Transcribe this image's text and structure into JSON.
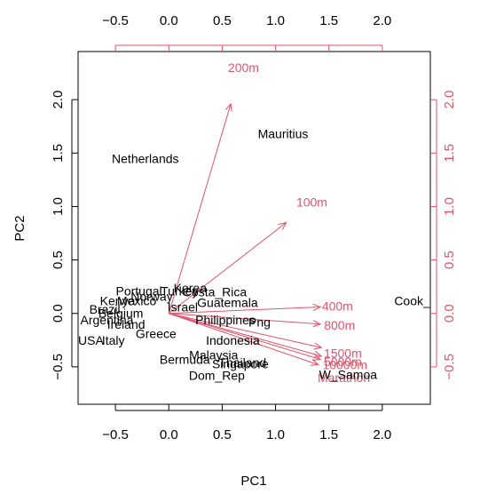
{
  "chart_data": {
    "type": "scatter",
    "subtype": "biplot",
    "title": "",
    "xlabel": "PC1",
    "ylabel": "PC2",
    "xlim": [
      -0.85,
      2.45
    ],
    "ylim": [
      -0.85,
      2.45
    ],
    "ticks": [
      -0.5,
      0.0,
      0.5,
      1.0,
      1.5,
      2.0
    ],
    "tick_labels": [
      "−0.5",
      "0.0",
      "0.5",
      "1.0",
      "1.5",
      "2.0"
    ],
    "vector_color": "#df536b",
    "axis_color": "#000000",
    "observations": [
      {
        "label": "Netherlands",
        "x": -0.22,
        "y": 1.45
      },
      {
        "label": "Mauritius",
        "x": 1.07,
        "y": 1.68
      },
      {
        "label": "Cook_",
        "x": 2.28,
        "y": 0.12
      },
      {
        "label": "Korea",
        "x": 0.2,
        "y": 0.24
      },
      {
        "label": "Costa_Rica",
        "x": 0.43,
        "y": 0.2
      },
      {
        "label": "Guatemala",
        "x": 0.55,
        "y": 0.1
      },
      {
        "label": "Portugal",
        "x": -0.28,
        "y": 0.21
      },
      {
        "label": "Turkey",
        "x": 0.1,
        "y": 0.21
      },
      {
        "label": "Israel",
        "x": 0.13,
        "y": 0.06
      },
      {
        "label": "Norway",
        "x": -0.16,
        "y": 0.16
      },
      {
        "label": "Kenya",
        "x": -0.48,
        "y": 0.12
      },
      {
        "label": "Mexico",
        "x": -0.3,
        "y": 0.12
      },
      {
        "label": "Brazil",
        "x": -0.6,
        "y": 0.04
      },
      {
        "label": "Belgium",
        "x": -0.45,
        "y": 0.0
      },
      {
        "label": "Philippines",
        "x": 0.53,
        "y": -0.06
      },
      {
        "label": "Png",
        "x": 0.85,
        "y": -0.08
      },
      {
        "label": "Argentina",
        "x": -0.58,
        "y": -0.06
      },
      {
        "label": "Ireland",
        "x": -0.4,
        "y": -0.1
      },
      {
        "label": "Greece",
        "x": -0.12,
        "y": -0.19
      },
      {
        "label": "Indonesia",
        "x": 0.6,
        "y": -0.25
      },
      {
        "label": "USA",
        "x": -0.73,
        "y": -0.25
      },
      {
        "label": "Italy",
        "x": -0.52,
        "y": -0.25
      },
      {
        "label": "Malaysia",
        "x": 0.42,
        "y": -0.39
      },
      {
        "label": "Bermuda",
        "x": 0.15,
        "y": -0.43
      },
      {
        "label": "Singapore",
        "x": 0.67,
        "y": -0.47
      },
      {
        "label": "Thailand",
        "x": 0.69,
        "y": -0.46
      },
      {
        "label": "Dom_Rep",
        "x": 0.45,
        "y": -0.58
      },
      {
        "label": "W_Samoa",
        "x": 1.68,
        "y": -0.57
      }
    ],
    "loadings": [
      {
        "label": "200m",
        "x": 0.58,
        "y": 1.96,
        "label_x": 0.7,
        "label_y": 2.3
      },
      {
        "label": "100m",
        "x": 1.1,
        "y": 0.85,
        "label_x": 1.34,
        "label_y": 1.04
      },
      {
        "label": "400m",
        "x": 1.42,
        "y": 0.06,
        "label_x": 1.58,
        "label_y": 0.07
      },
      {
        "label": "800m",
        "x": 1.42,
        "y": -0.1,
        "label_x": 1.6,
        "label_y": -0.11
      },
      {
        "label": "1500m",
        "x": 1.43,
        "y": -0.32,
        "label_x": 1.63,
        "label_y": -0.37
      },
      {
        "label": "5000m",
        "x": 1.43,
        "y": -0.4,
        "label_x": 1.63,
        "label_y": -0.45
      },
      {
        "label": "10000m",
        "x": 1.42,
        "y": -0.43,
        "label_x": 1.65,
        "label_y": -0.48
      },
      {
        "label": "Marathon",
        "x": 1.4,
        "y": -0.48,
        "label_x": 1.64,
        "label_y": -0.6
      }
    ]
  }
}
